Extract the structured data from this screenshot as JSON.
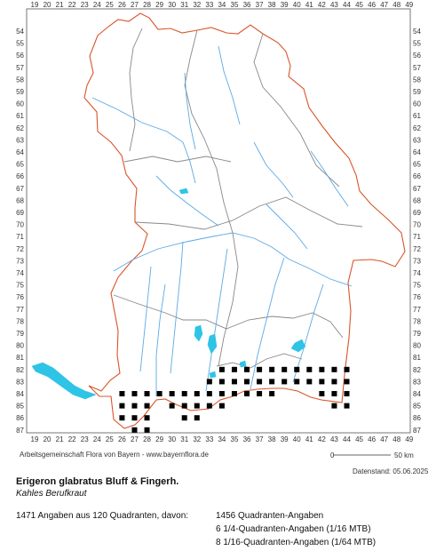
{
  "map": {
    "grid_columns": [
      19,
      20,
      21,
      22,
      23,
      24,
      25,
      26,
      27,
      28,
      29,
      30,
      31,
      32,
      33,
      34,
      35,
      36,
      37,
      38,
      39,
      40,
      41,
      42,
      43,
      44,
      45,
      46,
      47,
      48,
      49
    ],
    "grid_rows": [
      54,
      55,
      56,
      57,
      58,
      59,
      60,
      61,
      62,
      63,
      64,
      65,
      66,
      67,
      68,
      69,
      70,
      71,
      72,
      73,
      74,
      75,
      76,
      77,
      78,
      79,
      80,
      81,
      82,
      83,
      84,
      85,
      86,
      87
    ],
    "colors": {
      "frame": "#555555",
      "border": "#d9542b",
      "admin": "#888888",
      "river": "#5aa9e6",
      "lake": "#2ec4e6",
      "dot": "#000000"
    },
    "occurrence_cells": [
      [
        39,
        82
      ],
      [
        40,
        82
      ],
      [
        41,
        82
      ],
      [
        42,
        82
      ],
      [
        43,
        82
      ],
      [
        44,
        82
      ],
      [
        34,
        82
      ],
      [
        35,
        82
      ],
      [
        36,
        82
      ],
      [
        37,
        82
      ],
      [
        38,
        82
      ],
      [
        33,
        83
      ],
      [
        34,
        83
      ],
      [
        35,
        83
      ],
      [
        36,
        83
      ],
      [
        37,
        83
      ],
      [
        38,
        83
      ],
      [
        39,
        83
      ],
      [
        40,
        83
      ],
      [
        41,
        83
      ],
      [
        42,
        83
      ],
      [
        43,
        83
      ],
      [
        44,
        83
      ],
      [
        26,
        84
      ],
      [
        27,
        84
      ],
      [
        28,
        84
      ],
      [
        29,
        84
      ],
      [
        30,
        84
      ],
      [
        31,
        84
      ],
      [
        32,
        84
      ],
      [
        33,
        84
      ],
      [
        34,
        84
      ],
      [
        35,
        84
      ],
      [
        36,
        84
      ],
      [
        37,
        84
      ],
      [
        38,
        84
      ],
      [
        42,
        84
      ],
      [
        43,
        84
      ],
      [
        44,
        84
      ],
      [
        26,
        85
      ],
      [
        27,
        85
      ],
      [
        28,
        85
      ],
      [
        30,
        85
      ],
      [
        31,
        85
      ],
      [
        32,
        85
      ],
      [
        33,
        85
      ],
      [
        34,
        85
      ],
      [
        43,
        85
      ],
      [
        44,
        85
      ],
      [
        26,
        86
      ],
      [
        27,
        86
      ],
      [
        28,
        86
      ],
      [
        31,
        86
      ],
      [
        32,
        86
      ],
      [
        27,
        87
      ],
      [
        28,
        87
      ]
    ]
  },
  "scale_bar": {
    "start_label": "0",
    "end_label": "50 km"
  },
  "credit": "Arbeitsgemeinschaft Flora von Bayern - www.bayernflora.de",
  "datestand": "Datenstand: 05.06.2025",
  "species": {
    "name": "Erigeron glabratus Bluff & Fingerh.",
    "common_name": "Kahles Berufkraut"
  },
  "stats": {
    "total": "1471 Angaben aus 120 Quadranten, davon:",
    "quadrant": "1456 Quadranten-Angaben",
    "mtb16": "6 1/4-Quadranten-Angaben (1/16 MTB)",
    "mtb64": "8 1/16-Quadranten-Angaben (1/64 MTB)"
  }
}
